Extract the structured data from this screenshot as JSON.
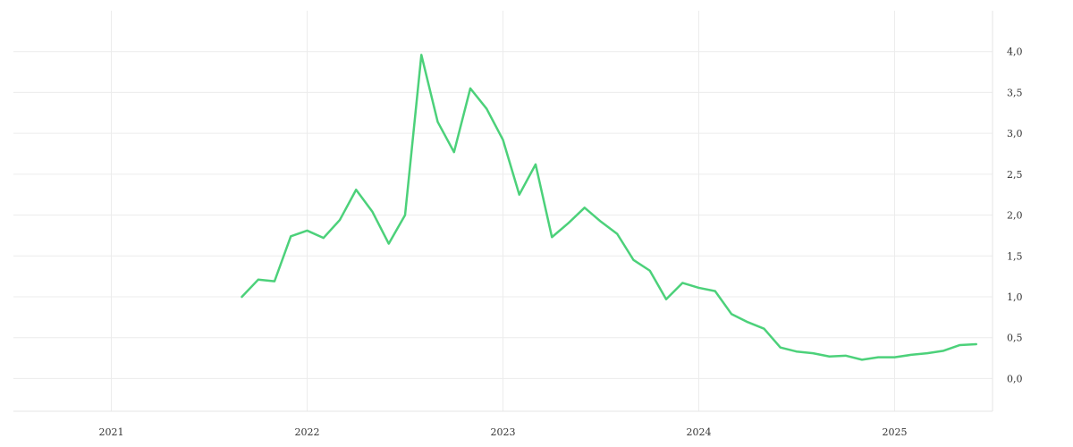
{
  "chart_data": {
    "type": "line",
    "title": "",
    "xlabel": "",
    "ylabel": "",
    "x_ticks": [
      "2021",
      "2022",
      "2023",
      "2024",
      "2025"
    ],
    "y_ticks": [
      "0,0",
      "0,5",
      "1,0",
      "1,5",
      "2,0",
      "2,5",
      "3,0",
      "3,5",
      "4,0"
    ],
    "xlim": [
      "2020-07",
      "2025-07"
    ],
    "ylim": [
      -0.4,
      4.5
    ],
    "y_axis_position": "right",
    "grid": true,
    "legend": "none",
    "colors": {
      "line": "#4cd17a",
      "grid": "#ececec",
      "text": "#333333"
    },
    "series": [
      {
        "x": [
          "2021-09",
          "2021-10",
          "2021-11",
          "2021-12",
          "2022-01",
          "2022-02",
          "2022-03",
          "2022-04",
          "2022-05",
          "2022-06",
          "2022-07",
          "2022-08",
          "2022-09",
          "2022-10",
          "2022-11",
          "2022-12",
          "2023-01",
          "2023-02",
          "2023-03",
          "2023-04",
          "2023-05",
          "2023-06",
          "2023-07",
          "2023-08",
          "2023-09",
          "2023-10",
          "2023-11",
          "2023-12",
          "2024-01",
          "2024-02",
          "2024-03",
          "2024-04",
          "2024-05",
          "2024-06",
          "2024-07",
          "2024-08",
          "2024-09",
          "2024-10",
          "2024-11",
          "2024-12",
          "2025-01",
          "2025-02",
          "2025-03",
          "2025-04",
          "2025-05",
          "2025-06"
        ],
        "values": [
          1.0,
          1.21,
          1.19,
          1.74,
          1.81,
          1.72,
          1.94,
          2.31,
          2.04,
          1.65,
          2.0,
          3.96,
          3.14,
          2.77,
          3.55,
          3.3,
          2.92,
          2.25,
          2.62,
          1.73,
          1.9,
          2.09,
          1.92,
          1.77,
          1.45,
          1.32,
          0.97,
          1.17,
          1.11,
          1.07,
          0.79,
          0.69,
          0.61,
          0.38,
          0.33,
          0.31,
          0.27,
          0.28,
          0.23,
          0.26,
          0.26,
          0.29,
          0.31,
          0.34,
          0.41,
          0.42
        ]
      }
    ]
  }
}
